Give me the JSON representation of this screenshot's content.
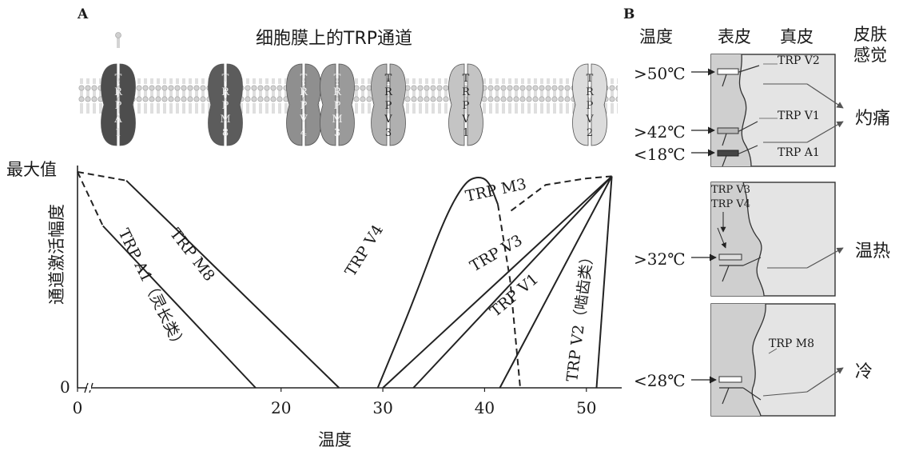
{
  "panel_a": {
    "letter": "A",
    "title": "细胞膜上的TRP通道",
    "channels": [
      {
        "name": "TRPA1",
        "letters": [
          "T",
          "R",
          "P",
          "A",
          "1"
        ],
        "color": "#4d4d4d",
        "text_color": "#e0e0e0"
      },
      {
        "name": "TRPM8",
        "letters": [
          "T",
          "R",
          "P",
          "M",
          "8"
        ],
        "color": "#5c5c5c",
        "text_color": "#e0e0e0"
      },
      {
        "name": "TRPV4",
        "letters": [
          "T",
          "R",
          "P",
          "V",
          "4"
        ],
        "color": "#8f8f8f",
        "text_color": "#eeeeee"
      },
      {
        "name": "TRPM3",
        "letters": [
          "T",
          "R",
          "P",
          "M",
          "3"
        ],
        "color": "#9a9a9a",
        "text_color": "#eeeeee"
      },
      {
        "name": "TRPV3",
        "letters": [
          "T",
          "R",
          "P",
          "V",
          "3"
        ],
        "color": "#b0b0b0",
        "text_color": "#222222"
      },
      {
        "name": "TRPV1",
        "letters": [
          "T",
          "R",
          "P",
          "V",
          "1"
        ],
        "color": "#c4c4c4",
        "text_color": "#222222"
      },
      {
        "name": "TRPV2",
        "letters": [
          "T",
          "R",
          "P",
          "V",
          "2"
        ],
        "color": "#dcdcdc",
        "text_color": "#333333"
      }
    ]
  },
  "chart_data": {
    "type": "line",
    "ylabel": "通道激活幅度",
    "xlabel": "温度",
    "y_max_label": "最大值",
    "y_zero_label": "0",
    "x_ticks": [
      0,
      20,
      30,
      40,
      50
    ],
    "xlim": [
      0,
      53
    ],
    "ylim": [
      0,
      1
    ],
    "series": [
      {
        "name": "TRP A1（灵长类）",
        "segments": [
          {
            "style": "dashed",
            "points": [
              [
                0,
                1
              ],
              [
                2.5,
                0.75
              ]
            ]
          },
          {
            "style": "solid",
            "points": [
              [
                2.5,
                0.75
              ],
              [
                17.5,
                0
              ]
            ]
          }
        ]
      },
      {
        "name": "TRP M8",
        "segments": [
          {
            "style": "dashed",
            "points": [
              [
                0,
                1
              ],
              [
                4.8,
                0.96
              ]
            ]
          },
          {
            "style": "solid",
            "points": [
              [
                4.8,
                0.96
              ],
              [
                25.7,
                0
              ]
            ]
          }
        ]
      },
      {
        "name": "TRP V4",
        "segments": [
          {
            "style": "solid",
            "points": [
              [
                29.5,
                0
              ],
              [
                33,
                0.4
              ],
              [
                36,
                0.78
              ],
              [
                38,
                0.95
              ],
              [
                39.3,
                0.98
              ],
              [
                40.4,
                0.96
              ],
              [
                41.3,
                0.85
              ]
            ]
          }
        ]
      },
      {
        "name": "TRP M3",
        "segments": [
          {
            "style": "dashed",
            "points": [
              [
                41.3,
                0.85
              ],
              [
                42.5,
                0.5
              ],
              [
                43.5,
                0
              ]
            ]
          },
          {
            "style": "dashed",
            "points": [
              [
                42.6,
                0.82
              ],
              [
                46,
                0.94
              ],
              [
                50,
                0.97
              ],
              [
                52.5,
                0.98
              ]
            ]
          }
        ]
      },
      {
        "name": "TRP V3",
        "segments": [
          {
            "style": "solid",
            "points": [
              [
                30,
                0
              ],
              [
                52.5,
                0.98
              ]
            ]
          }
        ]
      },
      {
        "name": "TRP V1",
        "segments": [
          {
            "style": "solid",
            "points": [
              [
                33,
                0
              ],
              [
                52.5,
                0.98
              ]
            ]
          }
        ]
      },
      {
        "name": "TRP V2（啮齿类）",
        "segments": [
          {
            "style": "solid",
            "points": [
              [
                41.5,
                0
              ],
              [
                52.5,
                0.98
              ]
            ]
          },
          {
            "style": "solid",
            "points": [
              [
                51,
                0
              ],
              [
                52.5,
                0.98
              ]
            ]
          }
        ]
      }
    ],
    "curve_labels": [
      {
        "text": "TRP A1（灵长类）"
      },
      {
        "text": "TRP M8"
      },
      {
        "text": "TRP V4"
      },
      {
        "text": "TRP M3"
      },
      {
        "text": "TRP V3"
      },
      {
        "text": "TRP V1"
      },
      {
        "text": "TRP V2（啮齿类）"
      }
    ]
  },
  "panel_b": {
    "letter": "B",
    "headers": {
      "temperature": "温度",
      "epidermis": "表皮",
      "dermis": "真皮",
      "sensation_line1": "皮肤",
      "sensation_line2": "感觉"
    },
    "box1": {
      "temps": [
        ">50℃",
        ">42℃",
        "<18℃"
      ],
      "channels": [
        "TRP V2",
        "TRP V1",
        "TRP A1"
      ],
      "sensation": "灼痛"
    },
    "box2": {
      "temps": [
        ">32℃"
      ],
      "channels": [
        "TRP V3",
        "TRP V4"
      ],
      "sensation": "温热"
    },
    "box3": {
      "temps": [
        "<28℃"
      ],
      "channels": [
        "TRP M8"
      ],
      "sensation": "冷"
    }
  }
}
